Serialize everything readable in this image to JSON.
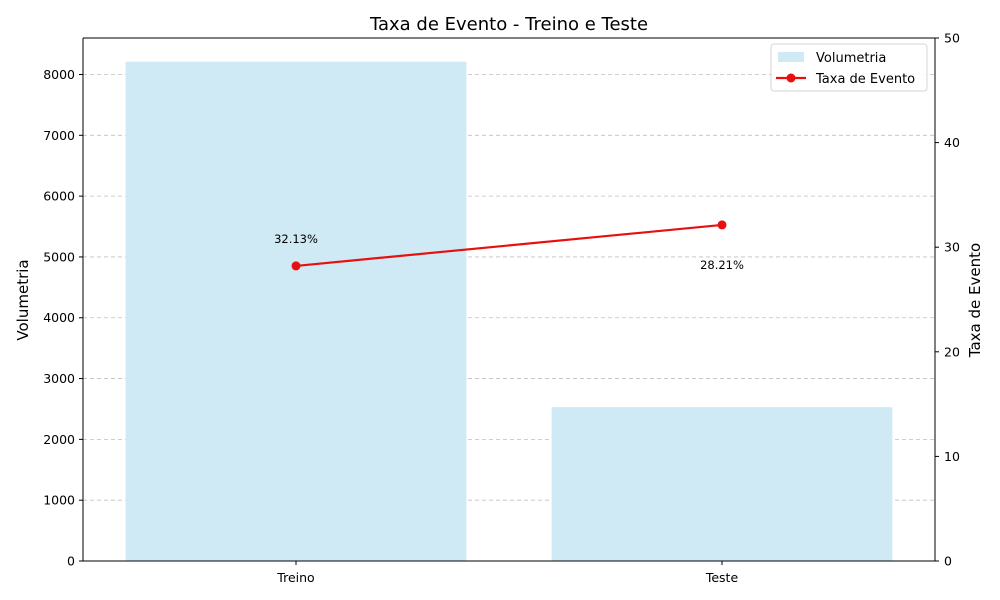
{
  "chart_data": {
    "type": "bar",
    "title": "Taxa de Evento - Treino e Teste",
    "categories": [
      "Treino",
      "Teste"
    ],
    "ylabel": "Volumetria",
    "y2label": "Taxa de Evento",
    "ylim": [
      0,
      8600
    ],
    "y2lim": [
      0,
      50
    ],
    "yticks": [
      0,
      1000,
      2000,
      3000,
      4000,
      5000,
      6000,
      7000,
      8000
    ],
    "y2ticks": [
      0,
      10,
      20,
      30,
      40,
      50
    ],
    "grid": true,
    "legend_position": "top-right",
    "series": [
      {
        "name": "Volumetria",
        "kind": "bar",
        "axis": "left",
        "color": "#cfeaf5",
        "values": [
          8210,
          2530
        ]
      },
      {
        "name": "Taxa de Evento",
        "kind": "line",
        "axis": "right",
        "color": "#e8100f",
        "values": [
          28.21,
          32.13
        ]
      }
    ],
    "annotations": [
      "32.13%",
      "28.21%"
    ]
  }
}
